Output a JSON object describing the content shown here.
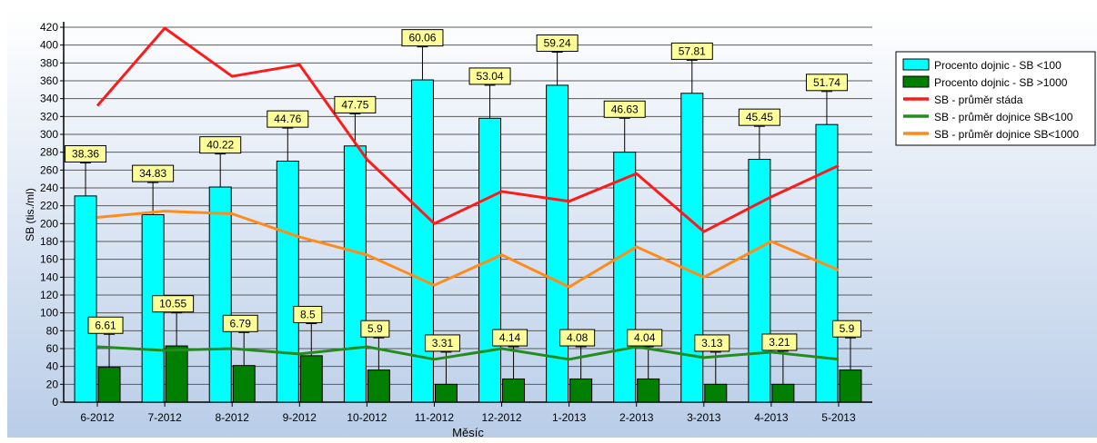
{
  "chart_data": {
    "type": "bar",
    "xlabel": "Měsíc",
    "ylabel": "SB (tis./ml)",
    "ylim": [
      0,
      420
    ],
    "ytick_step": 20,
    "grid": true,
    "legend_position": "right",
    "categories": [
      "6-2012",
      "7-2012",
      "8-2012",
      "9-2012",
      "10-2012",
      "11-2012",
      "12-2012",
      "1-2013",
      "2-2013",
      "3-2013",
      "4-2013",
      "5-2013"
    ],
    "colors": {
      "background_top": "#ffffff",
      "background_bottom": "#b9cde8",
      "grid": "#5a5a5a",
      "label_fill": "#ffff99"
    },
    "bar_series": [
      {
        "name": "Procento dojnic - SB <100",
        "color": "#00ffff",
        "values": [
          231,
          210,
          241,
          270,
          287,
          361,
          318,
          355,
          280,
          346,
          272,
          311
        ],
        "whisker_top": [
          268,
          246,
          278,
          307,
          323,
          398,
          355,
          392,
          318,
          383,
          309,
          348
        ],
        "labels": [
          "38.36",
          "34.83",
          "40.22",
          "44.76",
          "47.75",
          "60.06",
          "53.04",
          "59.24",
          "46.63",
          "57.81",
          "45.45",
          "51.74"
        ]
      },
      {
        "name": "Procento dojnic - SB >1000",
        "color": "#007f00",
        "values": [
          39,
          63,
          41,
          52,
          36,
          20,
          26,
          26,
          26,
          20,
          20,
          36
        ],
        "whisker_top": [
          76,
          100,
          78,
          88,
          72,
          56,
          62,
          62,
          62,
          56,
          57,
          72
        ],
        "labels": [
          "6.61",
          "10.55",
          "6.79",
          "8.5",
          "5.9",
          "3.31",
          "4.14",
          "4.08",
          "4.04",
          "3.13",
          "3.21",
          "5.9"
        ]
      }
    ],
    "line_series": [
      {
        "name": "SB - průměr stáda",
        "color": "#ff1a1a",
        "values": [
          332,
          419,
          365,
          378,
          272,
          200,
          236,
          225,
          256,
          191,
          230,
          265
        ]
      },
      {
        "name": "SB - průměr dojnice SB<100",
        "color": "#238c1e",
        "values": [
          62,
          58,
          60,
          54,
          62,
          48,
          60,
          48,
          62,
          50,
          56,
          48
        ]
      },
      {
        "name": "SB - průměr dojnice SB<1000",
        "color": "#ff8c1a",
        "values": [
          207,
          214,
          211,
          185,
          165,
          131,
          165,
          129,
          174,
          140,
          180,
          148
        ]
      }
    ]
  }
}
